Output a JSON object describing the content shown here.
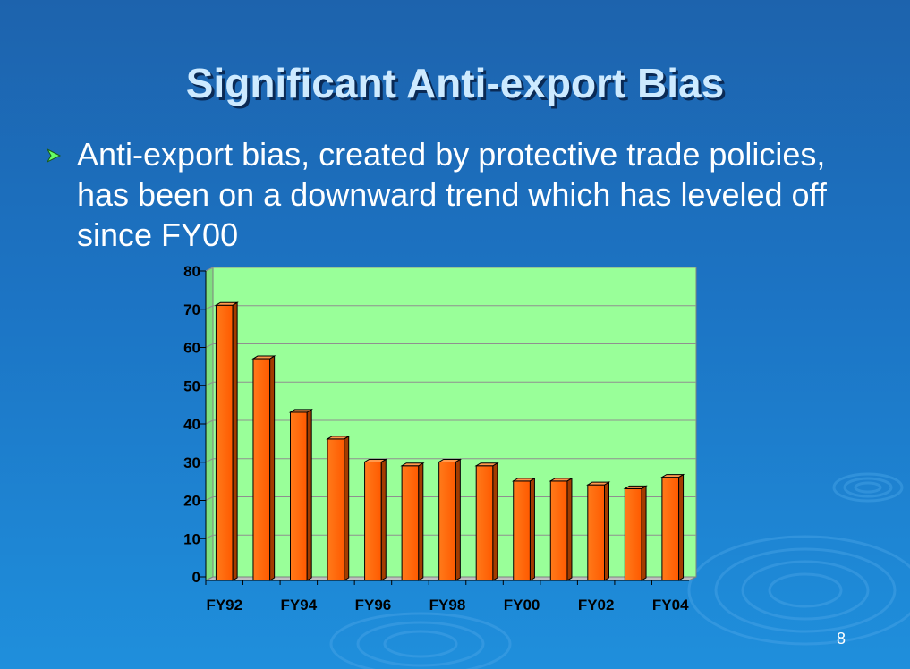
{
  "slide": {
    "title": "Significant Anti-export Bias",
    "bullet": "Anti-export bias, created by protective trade policies, has been on a downward trend which has leveled off since FY00",
    "page_number": "8"
  },
  "colors": {
    "background": "#1c74c4",
    "title": "#cdeaff",
    "plot_area": "#99ff99",
    "bar": "#ff6600",
    "bullet_arrow": "#66ff66"
  },
  "chart_data": {
    "type": "bar",
    "categories": [
      "FY92",
      "FY93",
      "FY94",
      "FY95",
      "FY96",
      "FY97",
      "FY98",
      "FY99",
      "FY00",
      "FY01",
      "FY02",
      "FY03",
      "FY04"
    ],
    "tick_labels": [
      "FY92",
      "FY94",
      "FY96",
      "FY98",
      "FY00",
      "FY02",
      "FY04"
    ],
    "values": [
      72,
      58,
      44,
      37,
      31,
      30,
      31,
      30,
      26,
      26,
      25,
      24,
      27
    ],
    "y_ticks": [
      "0",
      "10",
      "20",
      "30",
      "40",
      "50",
      "60",
      "70",
      "80"
    ],
    "ylim": [
      0,
      80
    ],
    "grid": true,
    "legend": "none"
  }
}
